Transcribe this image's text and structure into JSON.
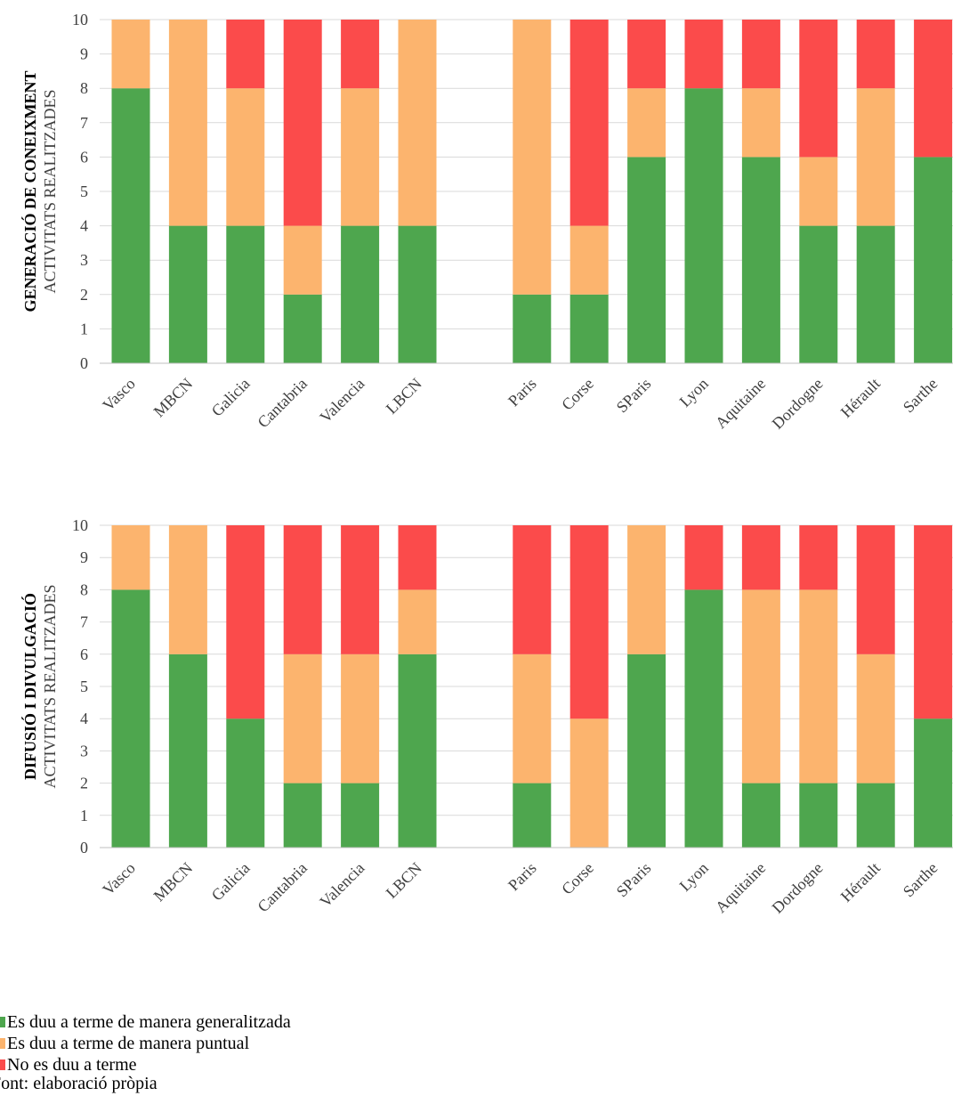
{
  "chart_data": [
    {
      "type": "bar",
      "stacked": true,
      "title": "GENERACIÓ DE CONEIXMENT",
      "ylabel": "ACTIVITATS REALITZADES",
      "ylim": [
        0,
        10
      ],
      "yticks": [
        0,
        1,
        2,
        3,
        4,
        5,
        6,
        7,
        8,
        9,
        10
      ],
      "grid": true,
      "categories": [
        "Vasco",
        "MBCN",
        "Galicia",
        "Cantabria",
        "Valencia",
        "LBCN",
        "",
        "Paris",
        "Corse",
        "SParis",
        "Lyon",
        "Aquitaine",
        "Dordogne",
        "Hérault",
        "Sarthe"
      ],
      "series": [
        {
          "name": "Es duu a terme de manera generalitzada",
          "color": "#4ea64e",
          "values": [
            8,
            4,
            4,
            2,
            4,
            4,
            null,
            2,
            2,
            6,
            8,
            6,
            4,
            4,
            6
          ]
        },
        {
          "name": "Es duu a terme de manera puntual",
          "color": "#fcb46e",
          "values": [
            2,
            6,
            4,
            2,
            4,
            6,
            null,
            8,
            2,
            2,
            0,
            2,
            2,
            4,
            0
          ]
        },
        {
          "name": "No es duu a terme",
          "color": "#fb4b4b",
          "values": [
            0,
            0,
            2,
            6,
            2,
            0,
            null,
            0,
            6,
            2,
            2,
            2,
            4,
            2,
            4
          ]
        }
      ]
    },
    {
      "type": "bar",
      "stacked": true,
      "title": "DIFUSIÓ I DIVULGACIÓ",
      "ylabel": "ACTIVITATS REALITZADES",
      "ylim": [
        0,
        10
      ],
      "yticks": [
        0,
        1,
        2,
        3,
        4,
        5,
        6,
        7,
        8,
        9,
        10
      ],
      "grid": true,
      "categories": [
        "Vasco",
        "MBCN",
        "Galicia",
        "Cantabria",
        "Valencia",
        "LBCN",
        "",
        "Paris",
        "Corse",
        "SParis",
        "Lyon",
        "Aquitaine",
        "Dordogne",
        "Hérault",
        "Sarthe"
      ],
      "series": [
        {
          "name": "Es duu a terme de manera generalitzada",
          "color": "#4ea64e",
          "values": [
            8,
            6,
            4,
            2,
            2,
            6,
            null,
            2,
            0,
            6,
            8,
            2,
            2,
            2,
            4
          ]
        },
        {
          "name": "Es duu a terme de manera puntual",
          "color": "#fcb46e",
          "values": [
            2,
            4,
            0,
            4,
            4,
            2,
            null,
            4,
            4,
            4,
            0,
            6,
            6,
            4,
            0
          ]
        },
        {
          "name": "No es duu a terme",
          "color": "#fb4b4b",
          "values": [
            0,
            0,
            6,
            4,
            4,
            2,
            null,
            4,
            6,
            0,
            2,
            2,
            2,
            4,
            6
          ]
        }
      ]
    }
  ],
  "legend": {
    "items": [
      {
        "label": "Es duu a terme de manera generalitzada",
        "color": "#4ea64e"
      },
      {
        "label": "Es duu a terme de manera puntual",
        "color": "#fcb46e"
      },
      {
        "label": "No es duu a terme",
        "color": "#fb4b4b"
      }
    ]
  },
  "source": "Font: elaboració pròpia"
}
